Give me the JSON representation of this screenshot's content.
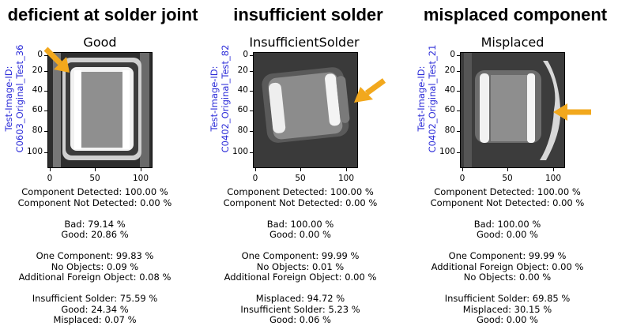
{
  "panels": [
    {
      "heading": "deficient at solder joint",
      "plot_title": "Good",
      "side_label_1": "Test-Image-ID:",
      "side_label_2": "C0603_Original_Test_36",
      "yticks": [
        "0",
        "20",
        "40",
        "60",
        "80",
        "100"
      ],
      "xticks": [
        "0",
        "50",
        "100"
      ],
      "stats": [
        [
          "Component Detected: 100.00 %",
          "Component Not Detected: 0.00 %"
        ],
        [
          "Bad: 79.14 %",
          "Good: 20.86 %"
        ],
        [
          "One Component: 99.83 %",
          "No Objects: 0.09 %",
          "Additional Foreign Object: 0.08 %"
        ],
        [
          "Insufficient Solder: 75.59 %",
          "Good: 24.34 %",
          "Misplaced: 0.07 %"
        ]
      ]
    },
    {
      "heading": "insufficient solder",
      "plot_title": "InsufficientSolder",
      "side_label_1": "Test-Image-ID:",
      "side_label_2": "C0402_Original_Test_82",
      "yticks": [
        "0",
        "20",
        "40",
        "60",
        "80",
        "100"
      ],
      "xticks": [
        "0",
        "50",
        "100"
      ],
      "stats": [
        [
          "Component Detected: 100.00 %",
          "Component Not Detected: 0.00 %"
        ],
        [
          "Bad: 100.00 %",
          "Good: 0.00 %"
        ],
        [
          "One Component: 99.99 %",
          "No Objects: 0.01 %",
          "Additional Foreign Object: 0.00 %"
        ],
        [
          "Misplaced: 94.72 %",
          "Insufficient Solder: 5.23 %",
          "Good: 0.06 %"
        ]
      ]
    },
    {
      "heading": "misplaced component",
      "plot_title": "Misplaced",
      "side_label_1": "Test-Image-ID:",
      "side_label_2": "C0402_Original_Test_21",
      "yticks": [
        "0",
        "20",
        "40",
        "60",
        "80",
        "100"
      ],
      "xticks": [
        "0",
        "50",
        "100"
      ],
      "stats": [
        [
          "Component Detected: 100.00 %",
          "Component Not Detected: 0.00 %"
        ],
        [
          "Bad: 100.00 %",
          "Good: 0.00 %"
        ],
        [
          "One Component: 99.99 %",
          "Additional Foreign Object: 0.00 %",
          "No Objects: 0.00 %"
        ],
        [
          "Insufficient Solder: 69.85 %",
          "Misplaced: 30.15 %",
          "Good: 0.00 %"
        ]
      ]
    }
  ],
  "colors": {
    "arrow": "#f2a81d",
    "id_label": "#2b2bd8"
  }
}
